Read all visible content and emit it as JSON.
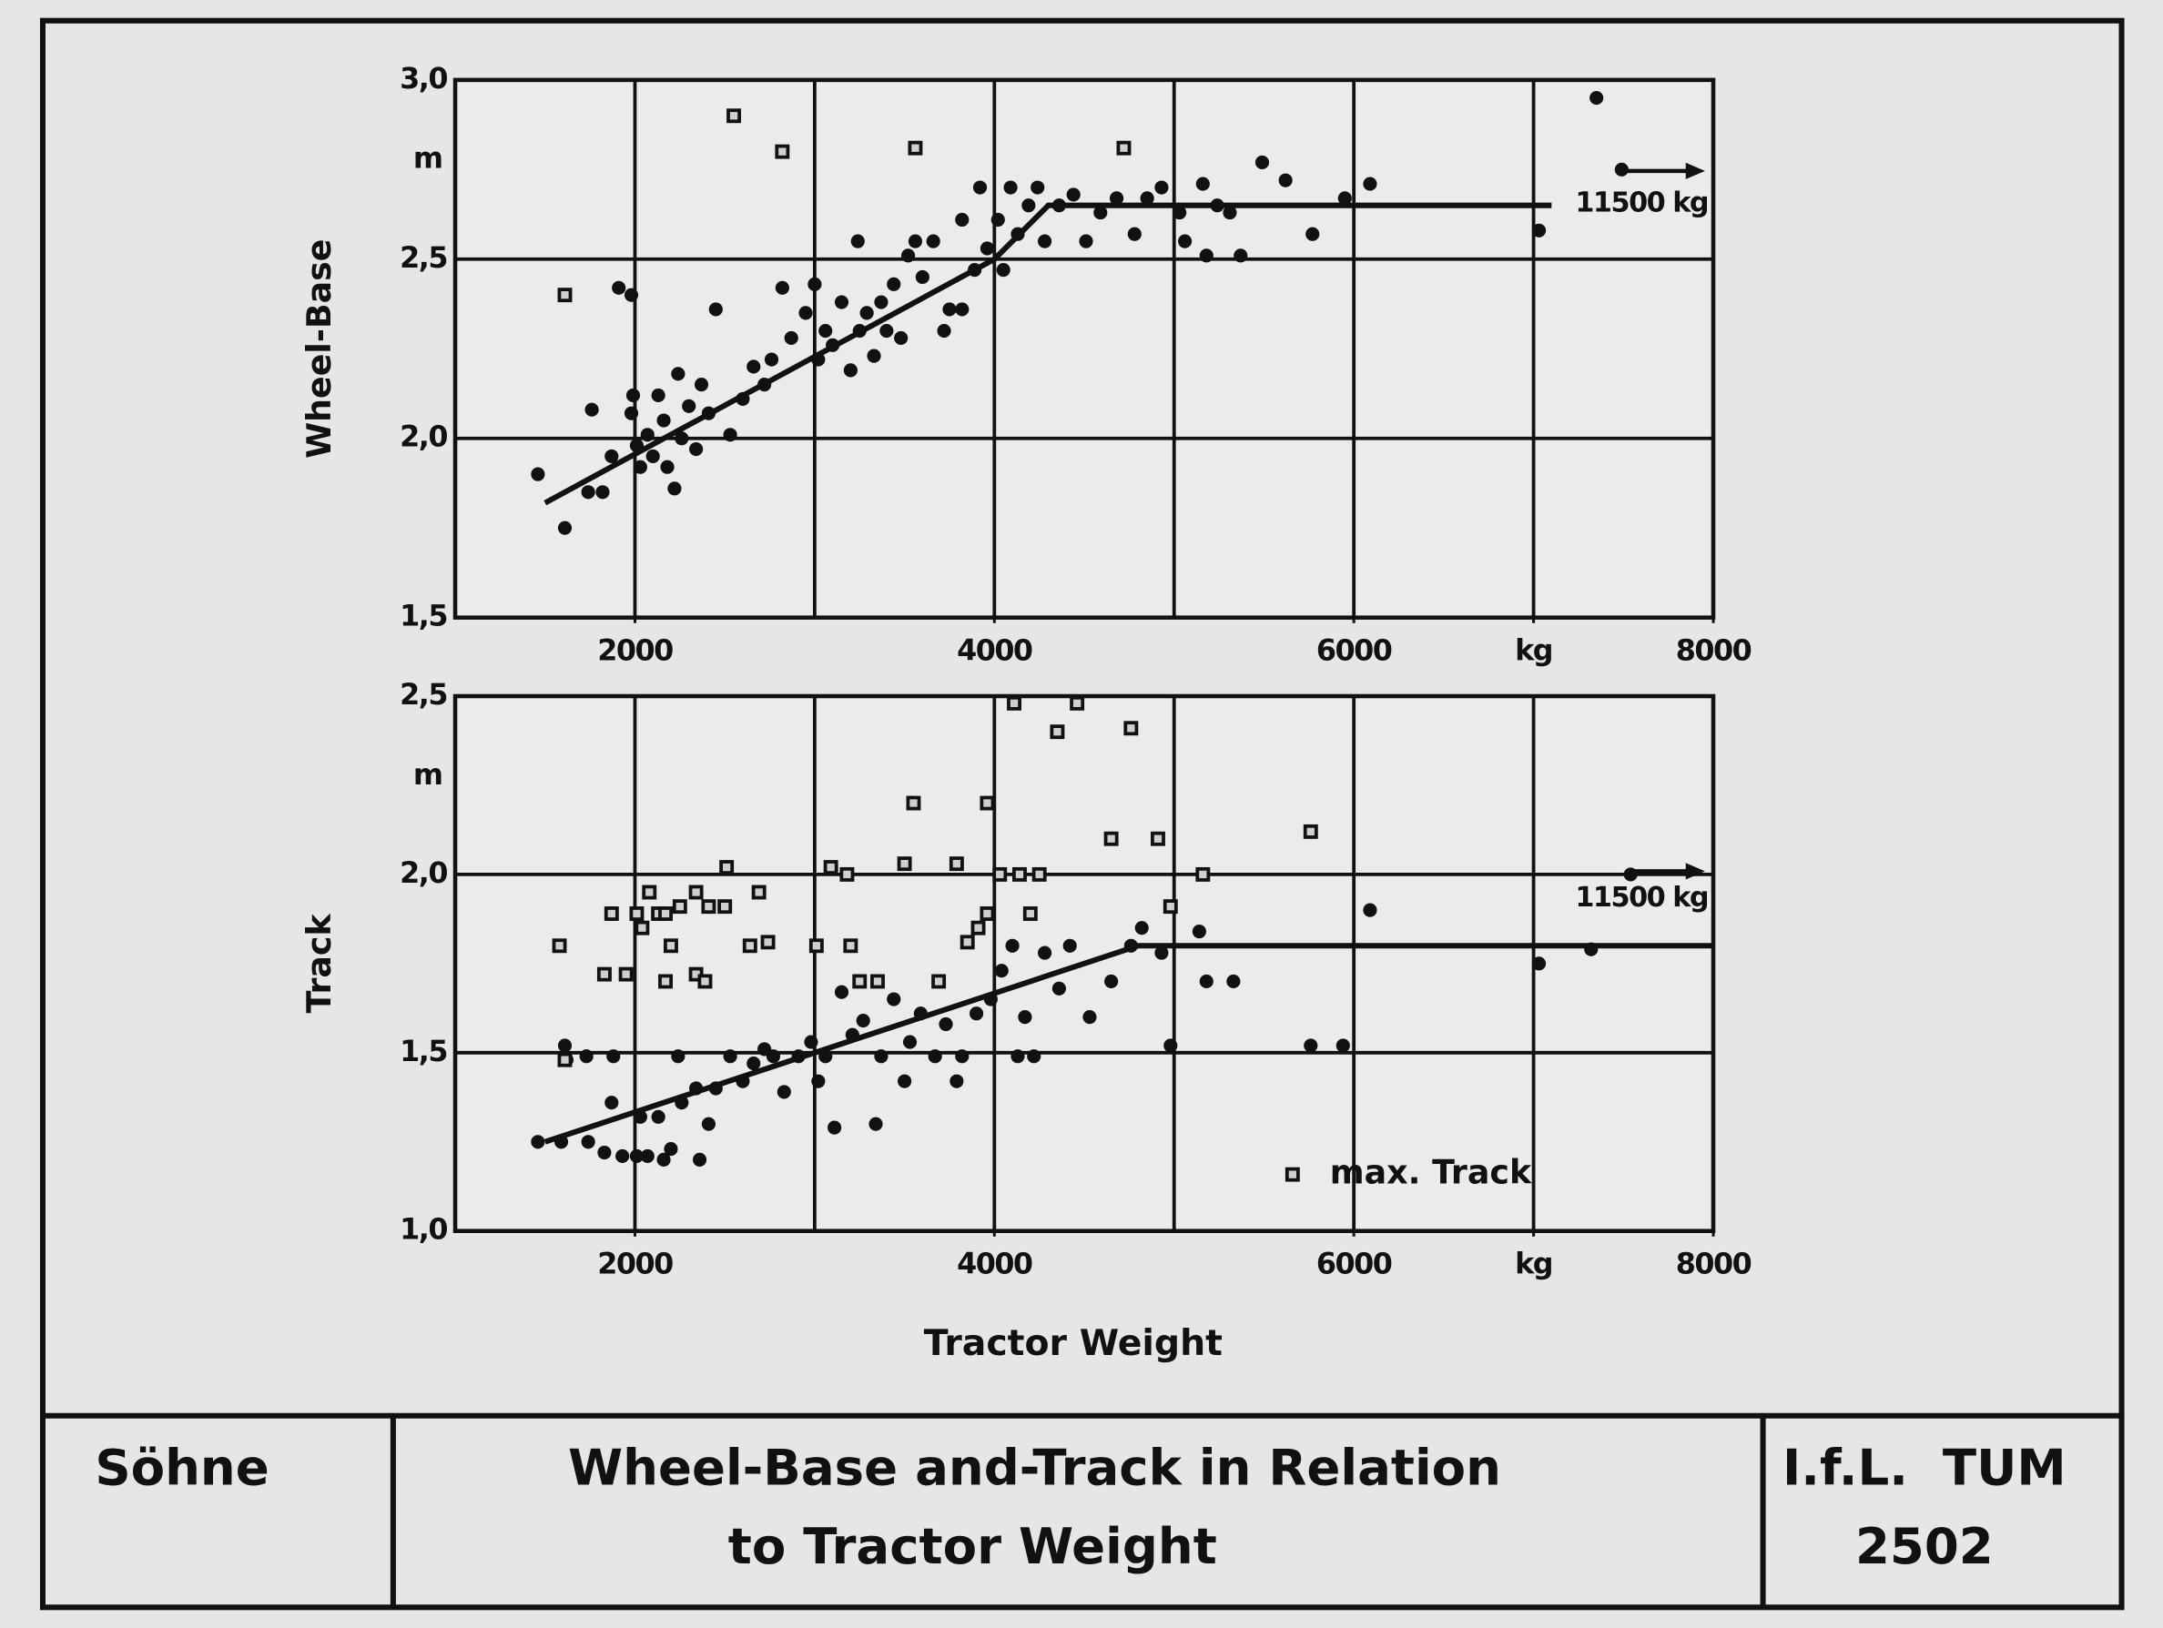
{
  "chart_data": [
    {
      "type": "scatter",
      "ylabel": "Wheel-Base",
      "unit": "m",
      "annotation": "11500 kg",
      "xlim": [
        1000,
        8000
      ],
      "xticks": [
        2000,
        4000,
        6000,
        {
          "value": 7000,
          "label": "kg"
        },
        8000
      ],
      "xgrid": [
        2000,
        3000,
        4000,
        5000,
        6000,
        7000
      ],
      "ylim": [
        1.5,
        3.0
      ],
      "yticks": [
        {
          "value": 1.5,
          "label": "1,5"
        },
        {
          "value": 2.0,
          "label": "2,0"
        },
        {
          "value": 2.5,
          "label": "2,5"
        },
        {
          "value": 3.0,
          "label": "3,0"
        }
      ],
      "grid": true,
      "series": [
        {
          "marker": "circle",
          "color": "#111111",
          "x": [
            1460,
            1610,
            1740,
            1820,
            1760,
            1870,
            1910,
            1980,
            1990,
            1980,
            2010,
            2030,
            2070,
            2100,
            2130,
            2160,
            2180,
            2220,
            2240,
            2260,
            2300,
            2340,
            2370,
            2410,
            2450,
            2530,
            2600,
            2660,
            2720,
            2760,
            2820,
            2870,
            2950,
            3000,
            3020,
            3060,
            3100,
            3150,
            3200,
            3240,
            3250,
            3290,
            3330,
            3370,
            3400,
            3440,
            3480,
            3520,
            3560,
            3600,
            3660,
            3720,
            3750,
            3820,
            3820,
            3890,
            3920,
            3960,
            4020,
            4050,
            4090,
            4130,
            4190,
            4240,
            4280,
            4360,
            4440,
            4510,
            4590,
            4680,
            4780,
            4850,
            4930,
            5030,
            5060,
            5160,
            5180,
            5240,
            5310,
            5370,
            5490,
            5620,
            5770,
            5950,
            6090,
            7030,
            7350,
            7490
          ],
          "values": [
            1.9,
            1.75,
            1.85,
            1.85,
            2.08,
            1.95,
            2.42,
            2.4,
            2.12,
            2.07,
            1.98,
            1.92,
            2.01,
            1.95,
            2.12,
            2.05,
            1.92,
            1.86,
            2.18,
            2.0,
            2.09,
            1.97,
            2.15,
            2.07,
            2.36,
            2.01,
            2.11,
            2.2,
            2.15,
            2.22,
            2.42,
            2.28,
            2.35,
            2.43,
            2.22,
            2.3,
            2.26,
            2.38,
            2.19,
            2.55,
            2.3,
            2.35,
            2.23,
            2.38,
            2.3,
            2.43,
            2.28,
            2.51,
            2.55,
            2.45,
            2.55,
            2.3,
            2.36,
            2.36,
            2.61,
            2.47,
            2.7,
            2.53,
            2.61,
            2.47,
            2.7,
            2.57,
            2.65,
            2.7,
            2.55,
            2.65,
            2.68,
            2.55,
            2.63,
            2.67,
            2.57,
            2.67,
            2.7,
            2.63,
            2.55,
            2.71,
            2.51,
            2.65,
            2.63,
            2.51,
            2.77,
            2.72,
            2.57,
            2.67,
            2.71,
            2.58,
            2.95,
            2.75
          ]
        },
        {
          "marker": "square",
          "color": "#111111",
          "x": [
            1610,
            2550,
            2820,
            3560,
            4720
          ],
          "values": [
            2.4,
            2.9,
            2.8,
            2.81,
            2.81
          ]
        },
        {
          "marker": "line",
          "color": "#111111",
          "x": [
            1500,
            4000,
            4300,
            7100
          ],
          "values": [
            1.82,
            2.5,
            2.65,
            2.65
          ]
        }
      ]
    },
    {
      "type": "scatter",
      "ylabel": "Track",
      "unit": "m",
      "annotation": "11500 kg",
      "xlabel": "Tractor Weight",
      "legend": "lower right",
      "xlim": [
        1000,
        8000
      ],
      "xticks": [
        2000,
        4000,
        6000,
        {
          "value": 7000,
          "label": "kg"
        },
        8000
      ],
      "xgrid": [
        2000,
        3000,
        4000,
        5000,
        6000,
        7000
      ],
      "ylim": [
        1.0,
        2.5
      ],
      "yticks": [
        {
          "value": 1.0,
          "label": "1,0"
        },
        {
          "value": 1.5,
          "label": "1,5"
        },
        {
          "value": 2.0,
          "label": "2,0"
        },
        {
          "value": 2.5,
          "label": "2,5"
        }
      ],
      "grid": true,
      "series": [
        {
          "marker": "circle",
          "color": "#111111",
          "x": [
            1460,
            1590,
            1610,
            1620,
            1730,
            1740,
            1830,
            1880,
            1870,
            1930,
            2010,
            2030,
            2070,
            2130,
            2160,
            2200,
            2240,
            2260,
            2340,
            2360,
            2410,
            2450,
            2530,
            2600,
            2660,
            2720,
            2770,
            2830,
            2910,
            2980,
            3020,
            3060,
            3110,
            3150,
            3210,
            3270,
            3340,
            3370,
            3440,
            3500,
            3530,
            3590,
            3670,
            3730,
            3790,
            3820,
            3900,
            3980,
            4040,
            4100,
            4130,
            4170,
            4220,
            4280,
            4360,
            4420,
            4530,
            4650,
            4760,
            4820,
            4930,
            4980,
            5140,
            5180,
            5330,
            5760,
            5940,
            6090,
            7030,
            7320,
            7540
          ],
          "values": [
            1.25,
            1.25,
            1.52,
            1.48,
            1.49,
            1.25,
            1.22,
            1.49,
            1.36,
            1.21,
            1.21,
            1.32,
            1.21,
            1.32,
            1.2,
            1.23,
            1.49,
            1.36,
            1.4,
            1.2,
            1.3,
            1.4,
            1.49,
            1.42,
            1.47,
            1.51,
            1.49,
            1.39,
            1.49,
            1.53,
            1.42,
            1.49,
            1.29,
            1.67,
            1.55,
            1.59,
            1.3,
            1.49,
            1.65,
            1.42,
            1.53,
            1.61,
            1.49,
            1.58,
            1.42,
            1.49,
            1.61,
            1.65,
            1.73,
            1.8,
            1.49,
            1.6,
            1.49,
            1.78,
            1.68,
            1.8,
            1.6,
            1.7,
            1.8,
            1.85,
            1.78,
            1.52,
            1.84,
            1.7,
            1.7,
            1.52,
            1.52,
            1.9,
            1.75,
            1.79,
            2.0
          ]
        },
        {
          "marker": "square",
          "color": "#111111",
          "name": "max. Track",
          "x": [
            1580,
            1610,
            1830,
            1870,
            1950,
            2010,
            2040,
            2080,
            2130,
            2170,
            2200,
            2170,
            2250,
            2340,
            2340,
            2390,
            2410,
            2500,
            2510,
            2640,
            2690,
            2740,
            3010,
            3090,
            3180,
            3200,
            3250,
            3350,
            3500,
            3550,
            3690,
            3790,
            3850,
            3910,
            3960,
            3960,
            4030,
            4110,
            4140,
            4200,
            4250,
            4350,
            4460,
            4650,
            4760,
            4910,
            4980,
            5160,
            5760
          ],
          "values": [
            1.8,
            1.48,
            1.72,
            1.89,
            1.72,
            1.89,
            1.85,
            1.95,
            1.89,
            1.89,
            1.8,
            1.7,
            1.91,
            1.95,
            1.72,
            1.7,
            1.91,
            1.91,
            2.02,
            1.8,
            1.95,
            1.81,
            1.8,
            2.02,
            2.0,
            1.8,
            1.7,
            1.7,
            2.03,
            2.2,
            1.7,
            2.03,
            1.81,
            1.85,
            2.2,
            1.89,
            2.0,
            2.48,
            2.0,
            1.89,
            2.0,
            2.4,
            2.48,
            2.1,
            2.41,
            2.1,
            1.91,
            2.0,
            2.12
          ]
        },
        {
          "marker": "line",
          "color": "#111111",
          "x": [
            1500,
            4800,
            8000
          ],
          "values": [
            1.25,
            1.8,
            1.8
          ]
        }
      ]
    }
  ],
  "title_block": {
    "left": "Söhne",
    "title_lines": [
      "Wheel-Base and-Track in Relation",
      "to Tractor Weight"
    ],
    "right": "I.f.L.  TUM",
    "number": "2502"
  }
}
